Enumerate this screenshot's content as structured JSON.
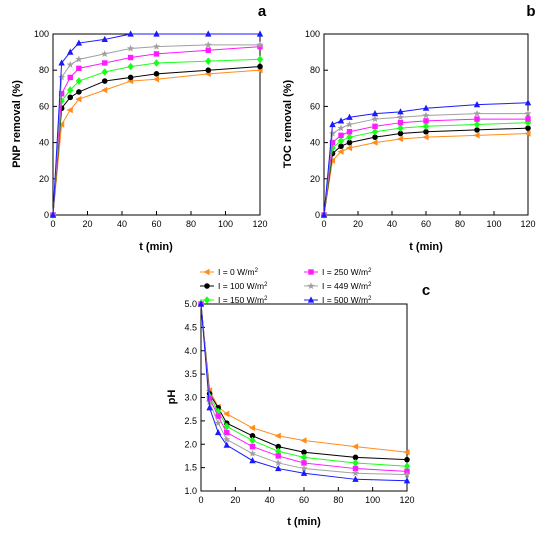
{
  "series_styles": [
    {
      "color": "#ff8c1a",
      "marker": "triangle-left"
    },
    {
      "color": "#000000",
      "marker": "circle"
    },
    {
      "color": "#1aff1a",
      "marker": "diamond"
    },
    {
      "color": "#ff1aff",
      "marker": "square"
    },
    {
      "color": "#a0a0a0",
      "marker": "star"
    },
    {
      "color": "#1a1aff",
      "marker": "triangle-up"
    }
  ],
  "legend": {
    "entries": [
      {
        "text": "I = 0 W/m",
        "sup": "2"
      },
      {
        "text": "I = 100 W/m",
        "sup": "2"
      },
      {
        "text": "I = 150 W/m",
        "sup": "2"
      },
      {
        "text": "I = 250 W/m",
        "sup": "2"
      },
      {
        "text": "I = 449 W/m",
        "sup": "2"
      },
      {
        "text": "I = 500 W/m",
        "sup": "2"
      }
    ]
  },
  "chart_data": [
    {
      "panel": "a",
      "type": "line",
      "xlabel": "t (min)",
      "ylabel": "PNP removal (%)",
      "xlim": [
        0,
        120
      ],
      "ylim": [
        0,
        100
      ],
      "xticks": [
        0,
        20,
        40,
        60,
        80,
        100,
        120
      ],
      "yticks": [
        0,
        20,
        40,
        60,
        80,
        100
      ],
      "x": [
        0,
        5,
        10,
        15,
        30,
        45,
        60,
        90,
        120
      ],
      "series": [
        {
          "name": "I = 0 W/m2",
          "values": [
            0,
            50,
            58,
            64,
            69,
            74,
            75,
            78,
            80
          ]
        },
        {
          "name": "I = 100 W/m2",
          "values": [
            0,
            59,
            65,
            68,
            74,
            76,
            78,
            80,
            82
          ]
        },
        {
          "name": "I = 150 W/m2",
          "values": [
            0,
            63,
            69,
            74,
            79,
            82,
            84,
            85,
            86
          ]
        },
        {
          "name": "I = 250 W/m2",
          "values": [
            0,
            67,
            76,
            81,
            84,
            87,
            89,
            91,
            93
          ]
        },
        {
          "name": "I = 449 W/m2",
          "values": [
            0,
            76,
            83,
            86,
            89,
            92,
            93,
            94,
            94
          ]
        },
        {
          "name": "I = 500 W/m2",
          "values": [
            0,
            84,
            90,
            95,
            97,
            100,
            100,
            100,
            100
          ]
        }
      ]
    },
    {
      "panel": "b",
      "type": "line",
      "xlabel": "t (min)",
      "ylabel": "TOC removal (%)",
      "xlim": [
        0,
        120
      ],
      "ylim": [
        0,
        100
      ],
      "xticks": [
        0,
        20,
        40,
        60,
        80,
        100,
        120
      ],
      "yticks": [
        0,
        20,
        40,
        60,
        80,
        100
      ],
      "x": [
        0,
        5,
        10,
        15,
        30,
        45,
        60,
        90,
        120
      ],
      "series": [
        {
          "name": "I = 0 W/m2",
          "values": [
            0,
            30,
            35,
            37,
            40,
            42,
            43,
            44,
            45
          ]
        },
        {
          "name": "I = 100 W/m2",
          "values": [
            0,
            34,
            38,
            40,
            43,
            45,
            46,
            47,
            48
          ]
        },
        {
          "name": "I = 150 W/m2",
          "values": [
            0,
            37,
            41,
            43,
            46,
            48,
            49,
            50,
            51
          ]
        },
        {
          "name": "I = 250 W/m2",
          "values": [
            0,
            40,
            44,
            46,
            49,
            51,
            52,
            53,
            53
          ]
        },
        {
          "name": "I = 449 W/m2",
          "values": [
            0,
            45,
            48,
            50,
            53,
            54,
            55,
            56,
            56
          ]
        },
        {
          "name": "I = 500 W/m2",
          "values": [
            0,
            50,
            52,
            54,
            56,
            57,
            59,
            61,
            62
          ]
        }
      ]
    },
    {
      "panel": "c",
      "type": "line",
      "xlabel": "t (min)",
      "ylabel": "pH",
      "xlim": [
        0,
        120
      ],
      "ylim": [
        1.0,
        5.0
      ],
      "xticks": [
        0,
        20,
        40,
        60,
        80,
        100,
        120
      ],
      "yticks": [
        "1.0",
        "1.5",
        "2.0",
        "2.5",
        "3.0",
        "3.5",
        "4.0",
        "4.5",
        "5.0"
      ],
      "x": [
        0,
        5,
        10,
        15,
        30,
        45,
        60,
        90,
        120
      ],
      "series": [
        {
          "name": "I = 0 W/m2",
          "values": [
            5.0,
            3.15,
            2.8,
            2.65,
            2.35,
            2.18,
            2.08,
            1.95,
            1.83
          ]
        },
        {
          "name": "I = 100 W/m2",
          "values": [
            5.0,
            3.08,
            2.78,
            2.45,
            2.18,
            1.95,
            1.83,
            1.72,
            1.67
          ]
        },
        {
          "name": "I = 150 W/m2",
          "values": [
            5.0,
            3.02,
            2.7,
            2.38,
            2.08,
            1.85,
            1.72,
            1.6,
            1.53
          ]
        },
        {
          "name": "I = 250 W/m2",
          "values": [
            5.0,
            2.98,
            2.6,
            2.25,
            1.95,
            1.75,
            1.6,
            1.48,
            1.42
          ]
        },
        {
          "name": "I = 449 W/m2",
          "values": [
            5.0,
            2.9,
            2.45,
            2.1,
            1.8,
            1.6,
            1.48,
            1.38,
            1.35
          ]
        },
        {
          "name": "I = 500 W/m2",
          "values": [
            5.0,
            2.78,
            2.25,
            1.98,
            1.65,
            1.48,
            1.38,
            1.25,
            1.22
          ]
        }
      ]
    }
  ]
}
